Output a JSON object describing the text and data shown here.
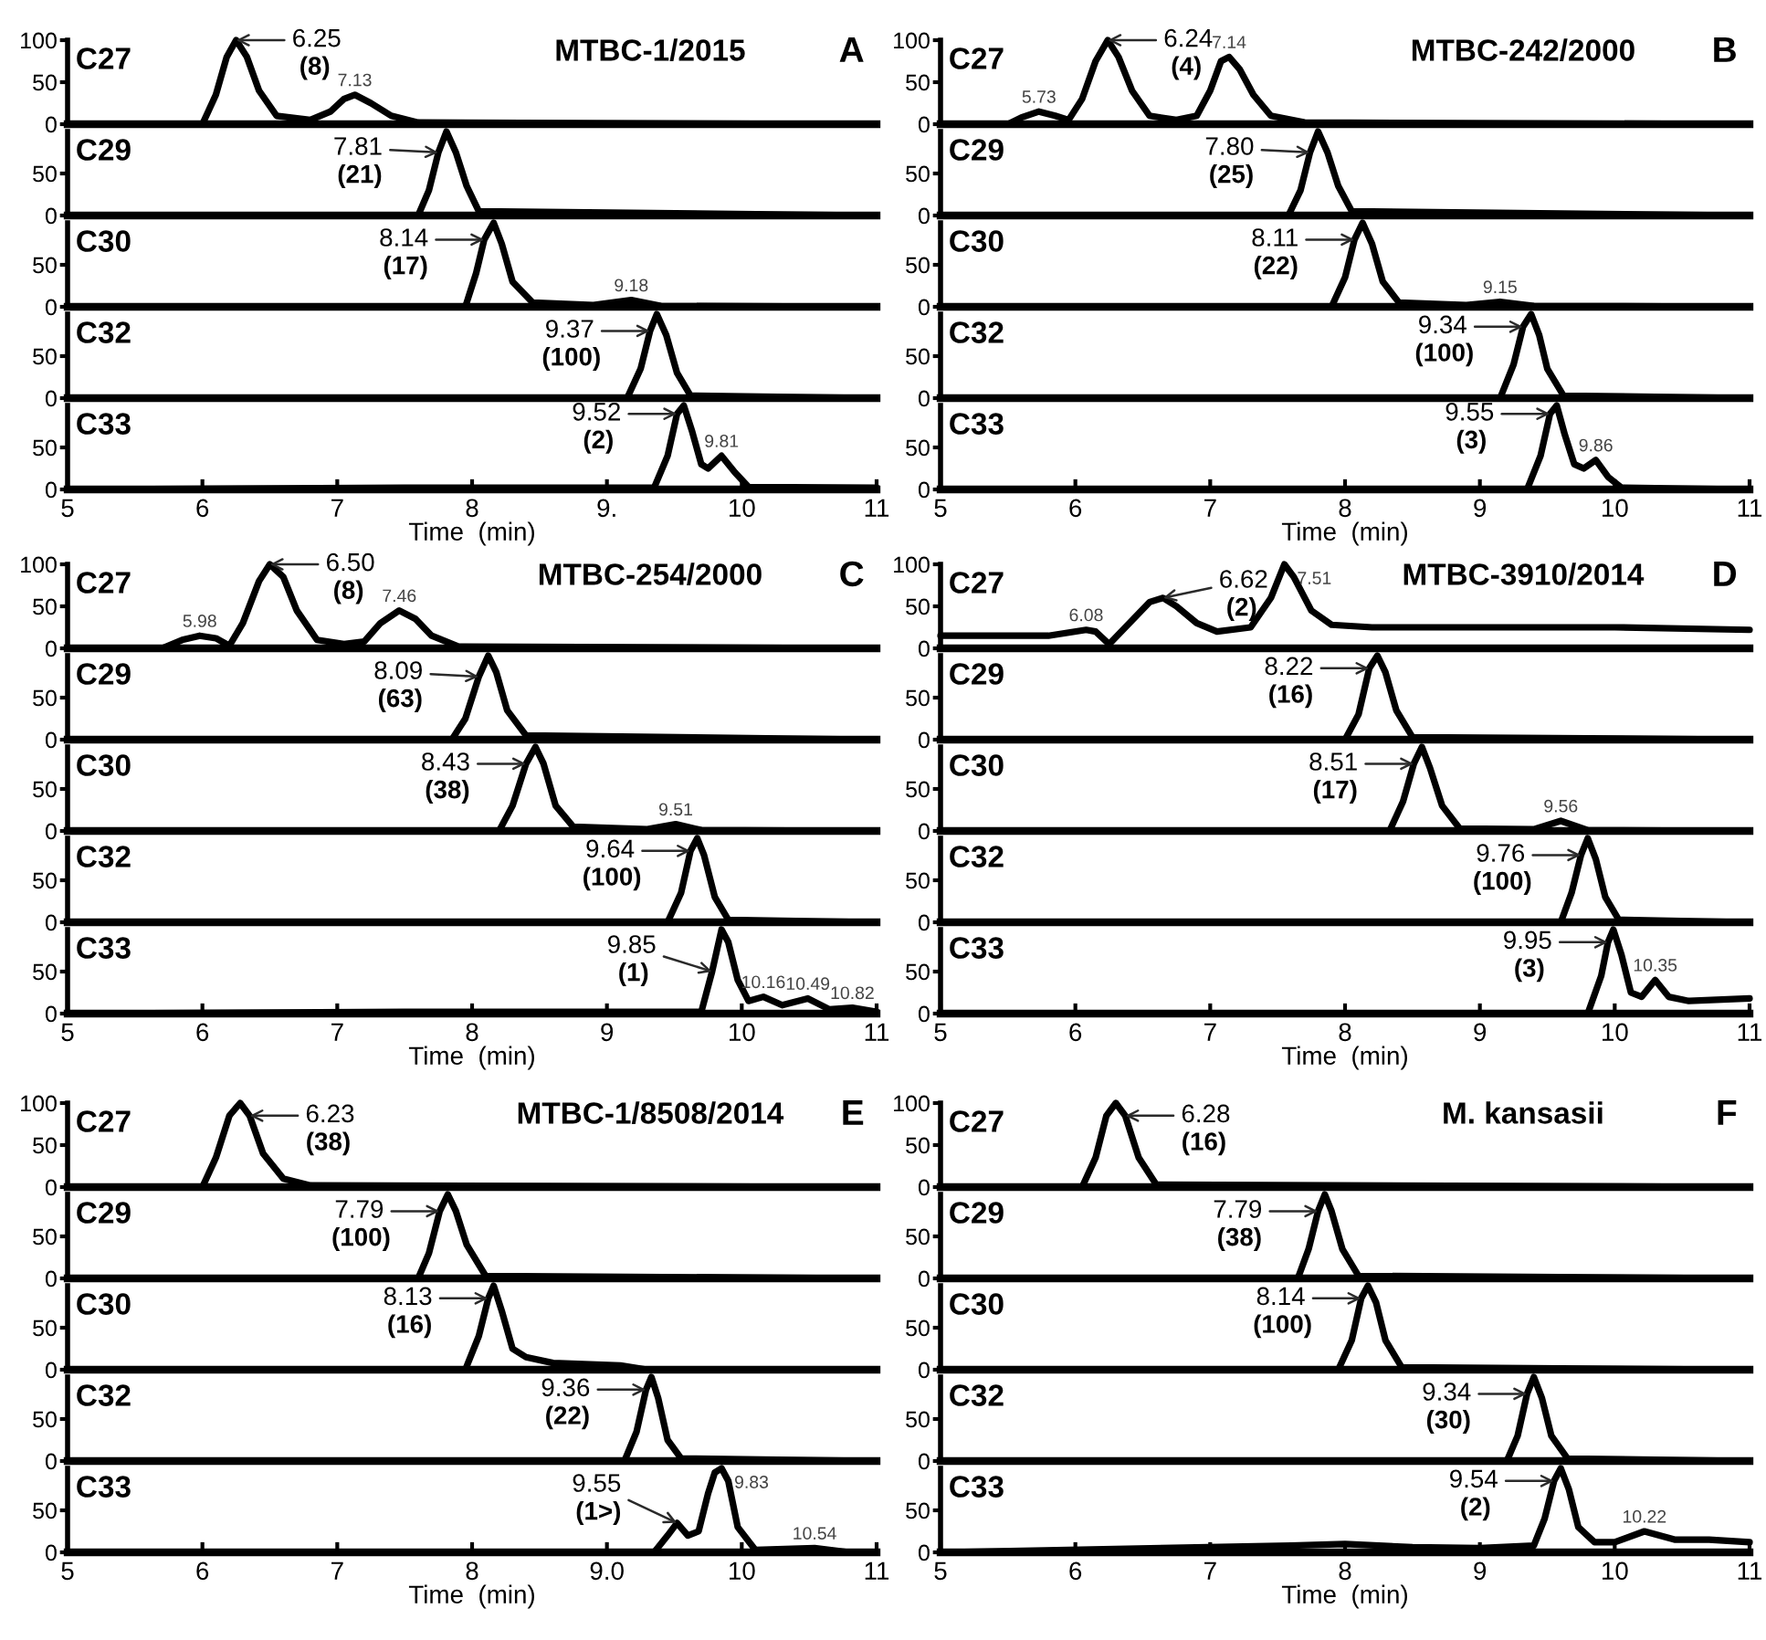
{
  "chart_data": [
    {
      "type": "line",
      "title": "MTBC-1/2015",
      "annotations": [
        "C27",
        "A",
        {
          "text": "6.25\n(8)",
          "x": 6.25,
          "y": 100
        },
        {
          "text": "7.13",
          "x": 7.13,
          "y": 35
        }
      ],
      "x": [
        5,
        6.0,
        6.1,
        6.18,
        6.25,
        6.33,
        6.42,
        6.55,
        6.8,
        6.95,
        7.05,
        7.13,
        7.25,
        7.4,
        7.6,
        11
      ],
      "values": [
        0,
        0,
        35,
        80,
        100,
        80,
        40,
        10,
        5,
        15,
        30,
        35,
        25,
        10,
        2,
        0
      ],
      "color": "#000000",
      "xlim": [
        5,
        11
      ],
      "ylim": [
        0,
        100
      ],
      "yticks": [
        0,
        50,
        100
      ],
      "tick_labels": "y"
    },
    {
      "type": "line",
      "annotations": [
        "C29",
        {
          "text": "7.81\n(21)",
          "x": 7.75,
          "y": 75
        }
      ],
      "x": [
        5,
        7.6,
        7.68,
        7.75,
        7.81,
        7.88,
        7.96,
        8.05,
        11
      ],
      "values": [
        0,
        0,
        30,
        75,
        100,
        75,
        35,
        5,
        0
      ],
      "color": "#000000",
      "xlim": [
        5,
        11
      ],
      "ylim": [
        0,
        100
      ],
      "yticks": [
        0,
        50
      ],
      "tick_labels": "y"
    },
    {
      "type": "line",
      "annotations": [
        "C30",
        {
          "text": "8.14\n(17)",
          "x": 8.09,
          "y": 80
        },
        {
          "text": "9.18",
          "x": 9.18,
          "y": 8
        }
      ],
      "x": [
        5,
        7.95,
        8.03,
        8.09,
        8.16,
        8.22,
        8.3,
        8.45,
        8.9,
        9.18,
        9.4,
        11
      ],
      "values": [
        0,
        0,
        40,
        80,
        100,
        75,
        30,
        5,
        2,
        8,
        1,
        0
      ],
      "color": "#000000",
      "xlim": [
        5,
        11
      ],
      "ylim": [
        0,
        100
      ],
      "yticks": [
        0,
        50
      ],
      "tick_labels": "y"
    },
    {
      "type": "line",
      "annotations": [
        "C32",
        {
          "text": "9.37\n(100)",
          "x": 9.32,
          "y": 80
        }
      ],
      "x": [
        5,
        9.15,
        9.25,
        9.32,
        9.37,
        9.44,
        9.52,
        9.62,
        11
      ],
      "values": [
        0,
        0,
        35,
        80,
        100,
        75,
        30,
        3,
        0
      ],
      "color": "#000000",
      "xlim": [
        5,
        11
      ],
      "ylim": [
        0,
        100
      ],
      "yticks": [
        0,
        50
      ],
      "tick_labels": "y"
    },
    {
      "type": "line",
      "annotations": [
        "C33",
        {
          "text": "9.52\n(2)",
          "x": 9.52,
          "y": 90
        },
        {
          "text": "9.81",
          "x": 9.85,
          "y": 40
        }
      ],
      "x": [
        5,
        7.5,
        9.35,
        9.45,
        9.52,
        9.57,
        9.63,
        9.7,
        9.75,
        9.85,
        9.95,
        10.05,
        11
      ],
      "values": [
        0,
        2,
        2,
        40,
        90,
        100,
        70,
        30,
        25,
        40,
        20,
        3,
        2
      ],
      "color": "#000000",
      "xlim": [
        5,
        11
      ],
      "ylim": [
        0,
        100
      ],
      "yticks": [
        0,
        50
      ],
      "xticks": [
        5,
        6,
        7,
        8,
        {
          "value": 9,
          "label": "9."
        },
        10,
        11
      ],
      "xlabel": "Time  (min)"
    },
    {
      "type": "line",
      "title": "MTBC-242/2000",
      "annotations": [
        "C27",
        "B",
        {
          "text": "6.24\n(4)",
          "x": 6.24,
          "y": 100
        },
        {
          "text": "5.73",
          "x": 5.73,
          "y": 15
        },
        {
          "text": "7.14",
          "x": 7.14,
          "y": 80
        }
      ],
      "x": [
        5,
        5.5,
        5.6,
        5.73,
        5.85,
        5.95,
        6.05,
        6.15,
        6.24,
        6.32,
        6.42,
        6.55,
        6.75,
        6.9,
        7.0,
        7.08,
        7.14,
        7.22,
        7.32,
        7.45,
        7.7,
        11
      ],
      "values": [
        0,
        0,
        8,
        15,
        10,
        5,
        30,
        75,
        100,
        80,
        40,
        10,
        5,
        10,
        40,
        75,
        80,
        65,
        35,
        10,
        2,
        0
      ],
      "color": "#000000",
      "xlim": [
        5,
        11
      ],
      "ylim": [
        0,
        100
      ],
      "yticks": [
        0,
        50,
        100
      ],
      "tick_labels": "y"
    },
    {
      "type": "line",
      "annotations": [
        "C29",
        {
          "text": "7.80\n(25)",
          "x": 7.74,
          "y": 75
        }
      ],
      "x": [
        5,
        7.58,
        7.67,
        7.74,
        7.8,
        7.87,
        7.95,
        8.05,
        11
      ],
      "values": [
        0,
        0,
        30,
        75,
        100,
        75,
        35,
        5,
        0
      ],
      "color": "#000000",
      "xlim": [
        5,
        11
      ],
      "ylim": [
        0,
        100
      ],
      "yticks": [
        0,
        50
      ],
      "tick_labels": "y"
    },
    {
      "type": "line",
      "annotations": [
        "C30",
        {
          "text": "8.11\n(22)",
          "x": 8.07,
          "y": 80
        },
        {
          "text": "9.15",
          "x": 9.15,
          "y": 6
        }
      ],
      "x": [
        5,
        7.9,
        8.0,
        8.07,
        8.13,
        8.2,
        8.28,
        8.4,
        8.9,
        9.15,
        9.4,
        11
      ],
      "values": [
        0,
        0,
        35,
        80,
        100,
        75,
        30,
        5,
        2,
        6,
        1,
        0
      ],
      "color": "#000000",
      "xlim": [
        5,
        11
      ],
      "ylim": [
        0,
        100
      ],
      "yticks": [
        0,
        50
      ],
      "tick_labels": "y"
    },
    {
      "type": "line",
      "annotations": [
        "C32",
        {
          "text": "9.34\n(100)",
          "x": 9.32,
          "y": 85
        }
      ],
      "x": [
        5,
        9.15,
        9.25,
        9.32,
        9.38,
        9.44,
        9.5,
        9.62,
        11
      ],
      "values": [
        0,
        0,
        40,
        85,
        100,
        75,
        35,
        3,
        0
      ],
      "color": "#000000",
      "xlim": [
        5,
        11
      ],
      "ylim": [
        0,
        100
      ],
      "yticks": [
        0,
        50
      ],
      "tick_labels": "y"
    },
    {
      "type": "line",
      "annotations": [
        "C33",
        {
          "text": "9.55\n(3)",
          "x": 9.52,
          "y": 90
        },
        {
          "text": "9.86",
          "x": 9.86,
          "y": 35
        }
      ],
      "x": [
        5,
        9.35,
        9.45,
        9.52,
        9.57,
        9.63,
        9.7,
        9.77,
        9.86,
        9.95,
        10.05,
        11
      ],
      "values": [
        0,
        0,
        40,
        90,
        100,
        65,
        30,
        25,
        35,
        15,
        2,
        0
      ],
      "color": "#000000",
      "xlim": [
        5,
        11
      ],
      "ylim": [
        0,
        100
      ],
      "yticks": [
        0,
        50
      ],
      "xticks": [
        5,
        6,
        7,
        8,
        9,
        10,
        11
      ],
      "xlabel": "Time  (min)"
    },
    {
      "type": "line",
      "title": "MTBC-254/2000",
      "annotations": [
        "C27",
        "C",
        {
          "text": "6.50\n(8)",
          "x": 6.5,
          "y": 100
        },
        {
          "text": "5.98",
          "x": 5.98,
          "y": 15
        },
        {
          "text": "7.46",
          "x": 7.46,
          "y": 45
        }
      ],
      "x": [
        5,
        5.7,
        5.85,
        5.98,
        6.1,
        6.2,
        6.3,
        6.42,
        6.5,
        6.6,
        6.7,
        6.85,
        7.05,
        7.2,
        7.32,
        7.46,
        7.58,
        7.7,
        7.9,
        11
      ],
      "values": [
        0,
        0,
        10,
        15,
        12,
        3,
        30,
        80,
        100,
        85,
        45,
        10,
        5,
        8,
        30,
        45,
        35,
        15,
        2,
        0
      ],
      "color": "#000000",
      "xlim": [
        5,
        11
      ],
      "ylim": [
        0,
        100
      ],
      "yticks": [
        0,
        50,
        100
      ],
      "tick_labels": "y"
    },
    {
      "type": "line",
      "annotations": [
        "C29",
        {
          "text": "8.09\n(63)",
          "x": 8.05,
          "y": 75
        }
      ],
      "x": [
        5,
        7.85,
        7.95,
        8.05,
        8.12,
        8.18,
        8.26,
        8.4,
        11
      ],
      "values": [
        0,
        0,
        25,
        75,
        100,
        80,
        35,
        5,
        0
      ],
      "color": "#000000",
      "xlim": [
        5,
        11
      ],
      "ylim": [
        0,
        100
      ],
      "yticks": [
        0,
        50
      ],
      "tick_labels": "y"
    },
    {
      "type": "line",
      "annotations": [
        "C30",
        {
          "text": "8.43\n(38)",
          "x": 8.4,
          "y": 80
        },
        {
          "text": "9.51",
          "x": 9.51,
          "y": 8
        }
      ],
      "x": [
        5,
        8.2,
        8.3,
        8.4,
        8.47,
        8.53,
        8.62,
        8.75,
        9.3,
        9.51,
        9.7,
        11
      ],
      "values": [
        0,
        0,
        30,
        80,
        100,
        80,
        30,
        5,
        2,
        8,
        1,
        0
      ],
      "color": "#000000",
      "xlim": [
        5,
        11
      ],
      "ylim": [
        0,
        100
      ],
      "yticks": [
        0,
        50
      ],
      "tick_labels": "y"
    },
    {
      "type": "line",
      "annotations": [
        "C32",
        {
          "text": "9.64\n(100)",
          "x": 9.62,
          "y": 85
        }
      ],
      "x": [
        5,
        9.45,
        9.55,
        9.62,
        9.67,
        9.72,
        9.8,
        9.9,
        11
      ],
      "values": [
        0,
        0,
        35,
        85,
        100,
        80,
        30,
        3,
        0
      ],
      "color": "#000000",
      "xlim": [
        5,
        11
      ],
      "ylim": [
        0,
        100
      ],
      "yticks": [
        0,
        50
      ],
      "tick_labels": "y"
    },
    {
      "type": "line",
      "annotations": [
        "C33",
        {
          "text": "9.85\n(1)",
          "x": 9.78,
          "y": 50
        },
        {
          "text": "10.16",
          "x": 10.16,
          "y": 20
        },
        {
          "text": "10.49",
          "x": 10.49,
          "y": 18
        },
        {
          "text": "10.82",
          "x": 10.82,
          "y": 7
        }
      ],
      "x": [
        5,
        7.5,
        9.7,
        9.78,
        9.85,
        9.9,
        9.97,
        10.05,
        10.16,
        10.3,
        10.49,
        10.65,
        10.82,
        11
      ],
      "values": [
        0,
        2,
        2,
        50,
        100,
        85,
        40,
        15,
        20,
        10,
        18,
        5,
        7,
        2
      ],
      "color": "#000000",
      "xlim": [
        5,
        11
      ],
      "ylim": [
        0,
        100
      ],
      "yticks": [
        0,
        50
      ],
      "xticks": [
        5,
        6,
        7,
        8,
        9,
        10,
        11
      ],
      "xlabel": "Time  (min)"
    },
    {
      "type": "line",
      "title": "MTBC-3910/2014",
      "annotations": [
        "C27",
        "D",
        {
          "text": "6.62\n(2)",
          "x": 6.65,
          "y": 60
        },
        {
          "text": "6.08",
          "x": 6.08,
          "y": 22
        },
        {
          "text": "7.51",
          "x": 7.55,
          "y": 100
        }
      ],
      "x": [
        5,
        5.8,
        6.08,
        6.15,
        6.25,
        6.4,
        6.55,
        6.65,
        6.75,
        6.9,
        7.05,
        7.3,
        7.45,
        7.55,
        7.62,
        7.75,
        7.9,
        8.2,
        9,
        10,
        11
      ],
      "values": [
        15,
        15,
        22,
        20,
        5,
        30,
        55,
        60,
        50,
        30,
        20,
        25,
        60,
        100,
        85,
        45,
        28,
        25,
        25,
        25,
        22
      ],
      "color": "#000000",
      "xlim": [
        5,
        11
      ],
      "ylim": [
        0,
        100
      ],
      "yticks": [
        0,
        50,
        100
      ],
      "tick_labels": "y"
    },
    {
      "type": "line",
      "annotations": [
        "C29",
        {
          "text": "8.22\n(16)",
          "x": 8.18,
          "y": 85
        }
      ],
      "x": [
        5,
        8.0,
        8.1,
        8.18,
        8.24,
        8.3,
        8.38,
        8.5,
        11
      ],
      "values": [
        0,
        0,
        30,
        85,
        100,
        80,
        35,
        3,
        0
      ],
      "color": "#000000",
      "xlim": [
        5,
        11
      ],
      "ylim": [
        0,
        100
      ],
      "yticks": [
        0,
        50
      ],
      "tick_labels": "y"
    },
    {
      "type": "line",
      "annotations": [
        "C30",
        {
          "text": "8.51\n(17)",
          "x": 8.51,
          "y": 80
        },
        {
          "text": "9.56",
          "x": 9.6,
          "y": 12
        }
      ],
      "x": [
        5,
        8.33,
        8.43,
        8.51,
        8.57,
        8.63,
        8.72,
        8.85,
        9.4,
        9.6,
        9.8,
        11
      ],
      "values": [
        0,
        0,
        35,
        80,
        100,
        75,
        30,
        3,
        2,
        12,
        1,
        0
      ],
      "color": "#000000",
      "xlim": [
        5,
        11
      ],
      "ylim": [
        0,
        100
      ],
      "yticks": [
        0,
        50
      ],
      "tick_labels": "y"
    },
    {
      "type": "line",
      "annotations": [
        "C32",
        {
          "text": "9.76\n(100)",
          "x": 9.75,
          "y": 80
        }
      ],
      "x": [
        5,
        9.6,
        9.68,
        9.75,
        9.8,
        9.86,
        9.93,
        10.03,
        11
      ],
      "values": [
        0,
        0,
        35,
        80,
        100,
        75,
        30,
        3,
        0
      ],
      "color": "#000000",
      "xlim": [
        5,
        11
      ],
      "ylim": [
        0,
        100
      ],
      "yticks": [
        0,
        50
      ],
      "tick_labels": "y"
    },
    {
      "type": "line",
      "annotations": [
        "C33",
        {
          "text": "9.95\n(3)",
          "x": 9.95,
          "y": 85
        },
        {
          "text": "10.35",
          "x": 10.3,
          "y": 40
        }
      ],
      "x": [
        5,
        9.8,
        9.9,
        9.95,
        9.99,
        10.05,
        10.12,
        10.2,
        10.3,
        10.4,
        10.55,
        11
      ],
      "values": [
        0,
        0,
        45,
        85,
        100,
        70,
        25,
        20,
        40,
        20,
        15,
        18
      ],
      "color": "#000000",
      "xlim": [
        5,
        11
      ],
      "ylim": [
        0,
        100
      ],
      "yticks": [
        0,
        50
      ],
      "xticks": [
        5,
        6,
        7,
        8,
        9,
        10,
        11
      ],
      "xlabel": "Time  (min)"
    },
    {
      "type": "line",
      "title": "MTBC-1/8508/2014",
      "annotations": [
        "C27",
        "E",
        {
          "text": "6.23\n(38)",
          "x": 6.35,
          "y": 85
        }
      ],
      "x": [
        5,
        6.0,
        6.1,
        6.2,
        6.28,
        6.35,
        6.45,
        6.6,
        6.8,
        11
      ],
      "values": [
        0,
        0,
        35,
        85,
        100,
        85,
        40,
        10,
        2,
        0
      ],
      "color": "#000000",
      "xlim": [
        5,
        11
      ],
      "ylim": [
        0,
        100
      ],
      "yticks": [
        0,
        50,
        100
      ],
      "tick_labels": "y"
    },
    {
      "type": "line",
      "annotations": [
        "C29",
        {
          "text": "7.79\n(100)",
          "x": 7.76,
          "y": 80
        }
      ],
      "x": [
        5,
        7.6,
        7.68,
        7.76,
        7.82,
        7.88,
        7.96,
        8.1,
        11
      ],
      "values": [
        0,
        0,
        30,
        80,
        100,
        80,
        40,
        3,
        0
      ],
      "color": "#000000",
      "xlim": [
        5,
        11
      ],
      "ylim": [
        0,
        100
      ],
      "yticks": [
        0,
        50
      ],
      "tick_labels": "y"
    },
    {
      "type": "line",
      "annotations": [
        "C30",
        {
          "text": "8.13\n(16)",
          "x": 8.12,
          "y": 85
        }
      ],
      "x": [
        5,
        7.95,
        8.05,
        8.12,
        8.16,
        8.22,
        8.3,
        8.4,
        8.6,
        9.1,
        9.3,
        11
      ],
      "values": [
        0,
        0,
        40,
        85,
        100,
        70,
        25,
        15,
        8,
        5,
        0,
        0
      ],
      "color": "#000000",
      "xlim": [
        5,
        11
      ],
      "ylim": [
        0,
        100
      ],
      "yticks": [
        0,
        50
      ],
      "tick_labels": "y"
    },
    {
      "type": "line",
      "annotations": [
        "C32",
        {
          "text": "9.36\n(22)",
          "x": 9.29,
          "y": 85
        }
      ],
      "x": [
        5,
        9.13,
        9.22,
        9.29,
        9.33,
        9.38,
        9.45,
        9.55,
        11
      ],
      "values": [
        0,
        0,
        35,
        85,
        100,
        75,
        25,
        3,
        0
      ],
      "color": "#000000",
      "xlim": [
        5,
        11
      ],
      "ylim": [
        0,
        100
      ],
      "yticks": [
        0,
        50
      ],
      "tick_labels": "y"
    },
    {
      "type": "line",
      "annotations": [
        "C33",
        {
          "text": "9.55\n(1>)",
          "x": 9.52,
          "y": 35
        },
        {
          "text": "9.83",
          "x": 9.85,
          "y": 100
        },
        {
          "text": "10.54",
          "x": 10.54,
          "y": 5
        }
      ],
      "x": [
        5,
        9.35,
        9.45,
        9.52,
        9.6,
        9.68,
        9.75,
        9.8,
        9.85,
        9.9,
        9.97,
        10.1,
        10.54,
        10.8,
        11
      ],
      "values": [
        0,
        0,
        20,
        35,
        20,
        25,
        70,
        95,
        100,
        85,
        30,
        3,
        5,
        0,
        0
      ],
      "color": "#000000",
      "xlim": [
        5,
        11
      ],
      "ylim": [
        0,
        100
      ],
      "yticks": [
        0,
        50
      ],
      "xticks": [
        5,
        6,
        7,
        8,
        {
          "value": 9,
          "label": "9.0"
        },
        10,
        11
      ],
      "xlabel": "Time  (min)"
    },
    {
      "type": "line",
      "title": "M. kansasii",
      "annotations": [
        "C27",
        "F",
        {
          "text": "6.28\n(16)",
          "x": 6.37,
          "y": 85
        }
      ],
      "x": [
        5,
        6.05,
        6.15,
        6.23,
        6.3,
        6.37,
        6.47,
        6.6,
        11
      ],
      "values": [
        0,
        0,
        35,
        85,
        100,
        85,
        35,
        3,
        0
      ],
      "color": "#000000",
      "xlim": [
        5,
        11
      ],
      "ylim": [
        0,
        100
      ],
      "yticks": [
        0,
        50,
        100
      ],
      "tick_labels": "y"
    },
    {
      "type": "line",
      "annotations": [
        "C29",
        {
          "text": "7.79\n(38)",
          "x": 7.8,
          "y": 80
        }
      ],
      "x": [
        5,
        7.65,
        7.73,
        7.8,
        7.85,
        7.9,
        7.98,
        8.1,
        11
      ],
      "values": [
        0,
        0,
        35,
        80,
        100,
        80,
        35,
        3,
        0
      ],
      "color": "#000000",
      "xlim": [
        5,
        11
      ],
      "ylim": [
        0,
        100
      ],
      "yticks": [
        0,
        50
      ],
      "tick_labels": "y"
    },
    {
      "type": "line",
      "annotations": [
        "C30",
        {
          "text": "8.14\n(100)",
          "x": 8.12,
          "y": 85
        }
      ],
      "x": [
        5,
        7.95,
        8.05,
        8.12,
        8.17,
        8.23,
        8.3,
        8.42,
        11
      ],
      "values": [
        0,
        0,
        35,
        85,
        100,
        80,
        35,
        3,
        0
      ],
      "color": "#000000",
      "xlim": [
        5,
        11
      ],
      "ylim": [
        0,
        100
      ],
      "yticks": [
        0,
        50
      ],
      "tick_labels": "y"
    },
    {
      "type": "line",
      "annotations": [
        "C32",
        {
          "text": "9.34\n(30)",
          "x": 9.35,
          "y": 80
        }
      ],
      "x": [
        5,
        9.2,
        9.28,
        9.35,
        9.4,
        9.46,
        9.53,
        9.65,
        11
      ],
      "values": [
        0,
        0,
        30,
        80,
        100,
        75,
        30,
        3,
        0
      ],
      "color": "#000000",
      "xlim": [
        5,
        11
      ],
      "ylim": [
        0,
        100
      ],
      "yticks": [
        0,
        50
      ],
      "tick_labels": "y"
    },
    {
      "type": "line",
      "annotations": [
        "C33",
        {
          "text": "9.54\n(2)",
          "x": 9.55,
          "y": 85
        },
        {
          "text": "10.22",
          "x": 10.22,
          "y": 25
        }
      ],
      "x": [
        5,
        7.6,
        8.0,
        8.5,
        9.0,
        9.4,
        9.48,
        9.55,
        9.6,
        9.66,
        9.73,
        9.85,
        10.0,
        10.22,
        10.45,
        10.7,
        11
      ],
      "values": [
        0,
        8,
        10,
        6,
        5,
        8,
        40,
        85,
        100,
        75,
        30,
        12,
        12,
        25,
        15,
        15,
        12
      ],
      "color": "#000000",
      "xlim": [
        5,
        11
      ],
      "ylim": [
        0,
        100
      ],
      "yticks": [
        0,
        50
      ],
      "xticks": [
        5,
        6,
        7,
        8,
        9,
        10,
        11
      ],
      "xlabel": "Time  (min)"
    }
  ]
}
